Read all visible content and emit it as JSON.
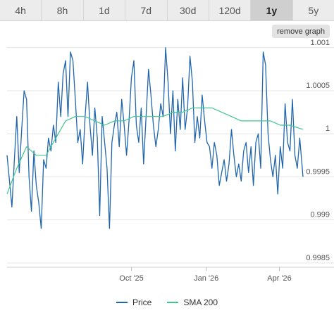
{
  "ranges": {
    "items": [
      {
        "label": "4h"
      },
      {
        "label": "8h"
      },
      {
        "label": "1d"
      },
      {
        "label": "7d"
      },
      {
        "label": "30d"
      },
      {
        "label": "120d"
      },
      {
        "label": "1y"
      },
      {
        "label": "5y"
      }
    ],
    "active_index": 6
  },
  "remove_graph_label": "remove graph",
  "colors": {
    "price": "#2166ac",
    "sma": "#3ec78c",
    "grid": "#e6e6e6"
  },
  "chart_data": {
    "type": "line",
    "title": "",
    "xlabel": "",
    "ylabel": "",
    "x_axis": {
      "type": "date",
      "range": [
        "2025-05-01",
        "2026-04-30"
      ],
      "ticks": [
        {
          "date": "2025-10-01",
          "label": "Oct '25"
        },
        {
          "date": "2026-01-01",
          "label": "Jan '26"
        },
        {
          "date": "2026-04-01",
          "label": "Apr '26"
        }
      ]
    },
    "y_axis": {
      "position": "right",
      "range": [
        0.99845,
        1.00108
      ],
      "ticks": [
        {
          "value": 0.9985,
          "label": "0.9985"
        },
        {
          "value": 0.999,
          "label": "0.999"
        },
        {
          "value": 0.9995,
          "label": "0.9995"
        },
        {
          "value": 1.0,
          "label": "1"
        },
        {
          "value": 1.0005,
          "label": "1.0005"
        },
        {
          "value": 1.001,
          "label": "1.001"
        }
      ]
    },
    "grid": true,
    "legend": "bottom",
    "series": [
      {
        "name": "Price",
        "points": [
          [
            "2025-05-01",
            0.99975
          ],
          [
            "2025-05-04",
            0.99945
          ],
          [
            "2025-05-07",
            0.99915
          ],
          [
            "2025-05-10",
            0.9997
          ],
          [
            "2025-05-13",
            1.0002
          ],
          [
            "2025-05-16",
            0.99955
          ],
          [
            "2025-05-19",
            1.00005
          ],
          [
            "2025-05-22",
            1.0005
          ],
          [
            "2025-05-25",
            1.0004
          ],
          [
            "2025-05-28",
            0.9995
          ],
          [
            "2025-05-31",
            0.9991
          ],
          [
            "2025-06-03",
            0.9998
          ],
          [
            "2025-06-06",
            0.9994
          ],
          [
            "2025-06-09",
            0.9992
          ],
          [
            "2025-06-12",
            0.9989
          ],
          [
            "2025-06-15",
            0.9997
          ],
          [
            "2025-06-18",
            0.9996
          ],
          [
            "2025-06-21",
            0.99995
          ],
          [
            "2025-06-24",
            0.9998
          ],
          [
            "2025-06-27",
            1.0001
          ],
          [
            "2025-06-30",
            0.9999
          ],
          [
            "2025-07-03",
            1.0006
          ],
          [
            "2025-07-06",
            1.0002
          ],
          [
            "2025-07-09",
            1.0007
          ],
          [
            "2025-07-12",
            1.00085
          ],
          [
            "2025-07-15",
            1.0002
          ],
          [
            "2025-07-18",
            1.00095
          ],
          [
            "2025-07-21",
            1.00085
          ],
          [
            "2025-07-24",
            1.0004
          ],
          [
            "2025-07-27",
            0.9999
          ],
          [
            "2025-07-30",
            1.00005
          ],
          [
            "2025-08-02",
            0.99965
          ],
          [
            "2025-08-05",
            1.0002
          ],
          [
            "2025-08-08",
            1.0006
          ],
          [
            "2025-08-11",
            1.0001
          ],
          [
            "2025-08-14",
            0.99975
          ],
          [
            "2025-08-17",
            1.0003
          ],
          [
            "2025-08-20",
            0.99995
          ],
          [
            "2025-08-23",
            0.99905
          ],
          [
            "2025-08-26",
            1.0002
          ],
          [
            "2025-08-29",
            0.9999
          ],
          [
            "2025-09-01",
            0.9996
          ],
          [
            "2025-09-04",
            0.9989
          ],
          [
            "2025-09-07",
            0.9999
          ],
          [
            "2025-09-10",
            1.0001
          ],
          [
            "2025-09-13",
            1.00025
          ],
          [
            "2025-09-16",
            0.99985
          ],
          [
            "2025-09-19",
            1.0004
          ],
          [
            "2025-09-22",
            1.0001
          ],
          [
            "2025-09-25",
            0.99975
          ],
          [
            "2025-09-28",
            1.00015
          ],
          [
            "2025-10-01",
            1.00065
          ],
          [
            "2025-10-04",
            1.00085
          ],
          [
            "2025-10-07",
            1.0001
          ],
          [
            "2025-10-10",
            0.9999
          ],
          [
            "2025-10-13",
            1.0003
          ],
          [
            "2025-10-16",
            0.99965
          ],
          [
            "2025-10-19",
            1.0002
          ],
          [
            "2025-10-22",
            1.00075
          ],
          [
            "2025-10-25",
            1.00045
          ],
          [
            "2025-10-28",
            1.0001
          ],
          [
            "2025-10-31",
            0.99985
          ],
          [
            "2025-11-03",
            1.00005
          ],
          [
            "2025-11-06",
            1.00035
          ],
          [
            "2025-11-09",
            1.0002
          ],
          [
            "2025-11-12",
            1.001
          ],
          [
            "2025-11-15",
            1.0006
          ],
          [
            "2025-11-18",
            1.0
          ],
          [
            "2025-11-21",
            1.0005
          ],
          [
            "2025-11-24",
            0.9998
          ],
          [
            "2025-11-27",
            1.0004
          ],
          [
            "2025-11-30",
            1.00005
          ],
          [
            "2025-12-03",
            1.00065
          ],
          [
            "2025-12-06",
            1.00005
          ],
          [
            "2025-12-09",
            1.0003
          ],
          [
            "2025-12-12",
            1.0009
          ],
          [
            "2025-12-15",
            1.0006
          ],
          [
            "2025-12-18",
            0.9999
          ],
          [
            "2025-12-21",
            1.0002
          ],
          [
            "2025-12-24",
            0.99995
          ],
          [
            "2025-12-27",
            1.00045
          ],
          [
            "2025-12-30",
            1.00015
          ],
          [
            "2026-01-02",
            0.9999
          ],
          [
            "2026-01-05",
            0.99985
          ],
          [
            "2026-01-08",
            0.9996
          ],
          [
            "2026-01-11",
            0.9999
          ],
          [
            "2026-01-14",
            0.99975
          ],
          [
            "2026-01-17",
            0.9994
          ],
          [
            "2026-01-20",
            0.99955
          ],
          [
            "2026-01-23",
            0.9997
          ],
          [
            "2026-01-26",
            0.99945
          ],
          [
            "2026-01-29",
            0.99965
          ],
          [
            "2026-02-01",
            1.00005
          ],
          [
            "2026-02-04",
            0.99975
          ],
          [
            "2026-02-07",
            0.9995
          ],
          [
            "2026-02-10",
            0.99965
          ],
          [
            "2026-02-13",
            0.99945
          ],
          [
            "2026-02-16",
            0.9998
          ],
          [
            "2026-02-19",
            0.9999
          ],
          [
            "2026-02-22",
            0.99955
          ],
          [
            "2026-02-25",
            0.99985
          ],
          [
            "2026-02-28",
            0.9994
          ],
          [
            "2026-03-03",
            0.9999
          ],
          [
            "2026-03-06",
            1.0
          ],
          [
            "2026-03-09",
            0.9996
          ],
          [
            "2026-03-12",
            1.00095
          ],
          [
            "2026-03-15",
            1.0008
          ],
          [
            "2026-03-18",
            1.0
          ],
          [
            "2026-03-21",
            0.9997
          ],
          [
            "2026-03-24",
            0.9995
          ],
          [
            "2026-03-27",
            0.99975
          ],
          [
            "2026-03-30",
            0.9993
          ],
          [
            "2026-04-02",
            0.99985
          ],
          [
            "2026-04-05",
            0.9996
          ],
          [
            "2026-04-08",
            1.00035
          ],
          [
            "2026-04-11",
            0.9999
          ],
          [
            "2026-04-14",
            0.9998
          ],
          [
            "2026-04-17",
            1.0004
          ],
          [
            "2026-04-20",
            0.99975
          ],
          [
            "2026-04-23",
            0.9996
          ],
          [
            "2026-04-26",
            0.99995
          ],
          [
            "2026-04-30",
            0.9995
          ]
        ]
      },
      {
        "name": "SMA 200",
        "points": [
          [
            "2025-05-01",
            0.9993
          ],
          [
            "2025-05-13",
            0.9996
          ],
          [
            "2025-05-25",
            0.99985
          ],
          [
            "2025-06-06",
            0.99975
          ],
          [
            "2025-06-18",
            0.99975
          ],
          [
            "2025-06-30",
            0.99995
          ],
          [
            "2025-07-12",
            1.00015
          ],
          [
            "2025-07-24",
            1.0002
          ],
          [
            "2025-08-05",
            1.0002
          ],
          [
            "2025-08-17",
            1.00015
          ],
          [
            "2025-08-29",
            1.0001
          ],
          [
            "2025-09-10",
            1.00015
          ],
          [
            "2025-09-22",
            1.00015
          ],
          [
            "2025-10-04",
            1.0002
          ],
          [
            "2025-10-16",
            1.0002
          ],
          [
            "2025-10-28",
            1.0002
          ],
          [
            "2025-11-09",
            1.0002
          ],
          [
            "2025-11-21",
            1.00025
          ],
          [
            "2025-12-03",
            1.00025
          ],
          [
            "2025-12-15",
            1.0003
          ],
          [
            "2025-12-27",
            1.0003
          ],
          [
            "2026-01-08",
            1.0003
          ],
          [
            "2026-01-20",
            1.00025
          ],
          [
            "2026-02-01",
            1.0002
          ],
          [
            "2026-02-13",
            1.00015
          ],
          [
            "2026-02-25",
            1.00015
          ],
          [
            "2026-03-09",
            1.00015
          ],
          [
            "2026-03-21",
            1.00015
          ],
          [
            "2026-04-02",
            1.0001
          ],
          [
            "2026-04-14",
            1.0001
          ],
          [
            "2026-04-30",
            1.00005
          ]
        ]
      }
    ]
  }
}
